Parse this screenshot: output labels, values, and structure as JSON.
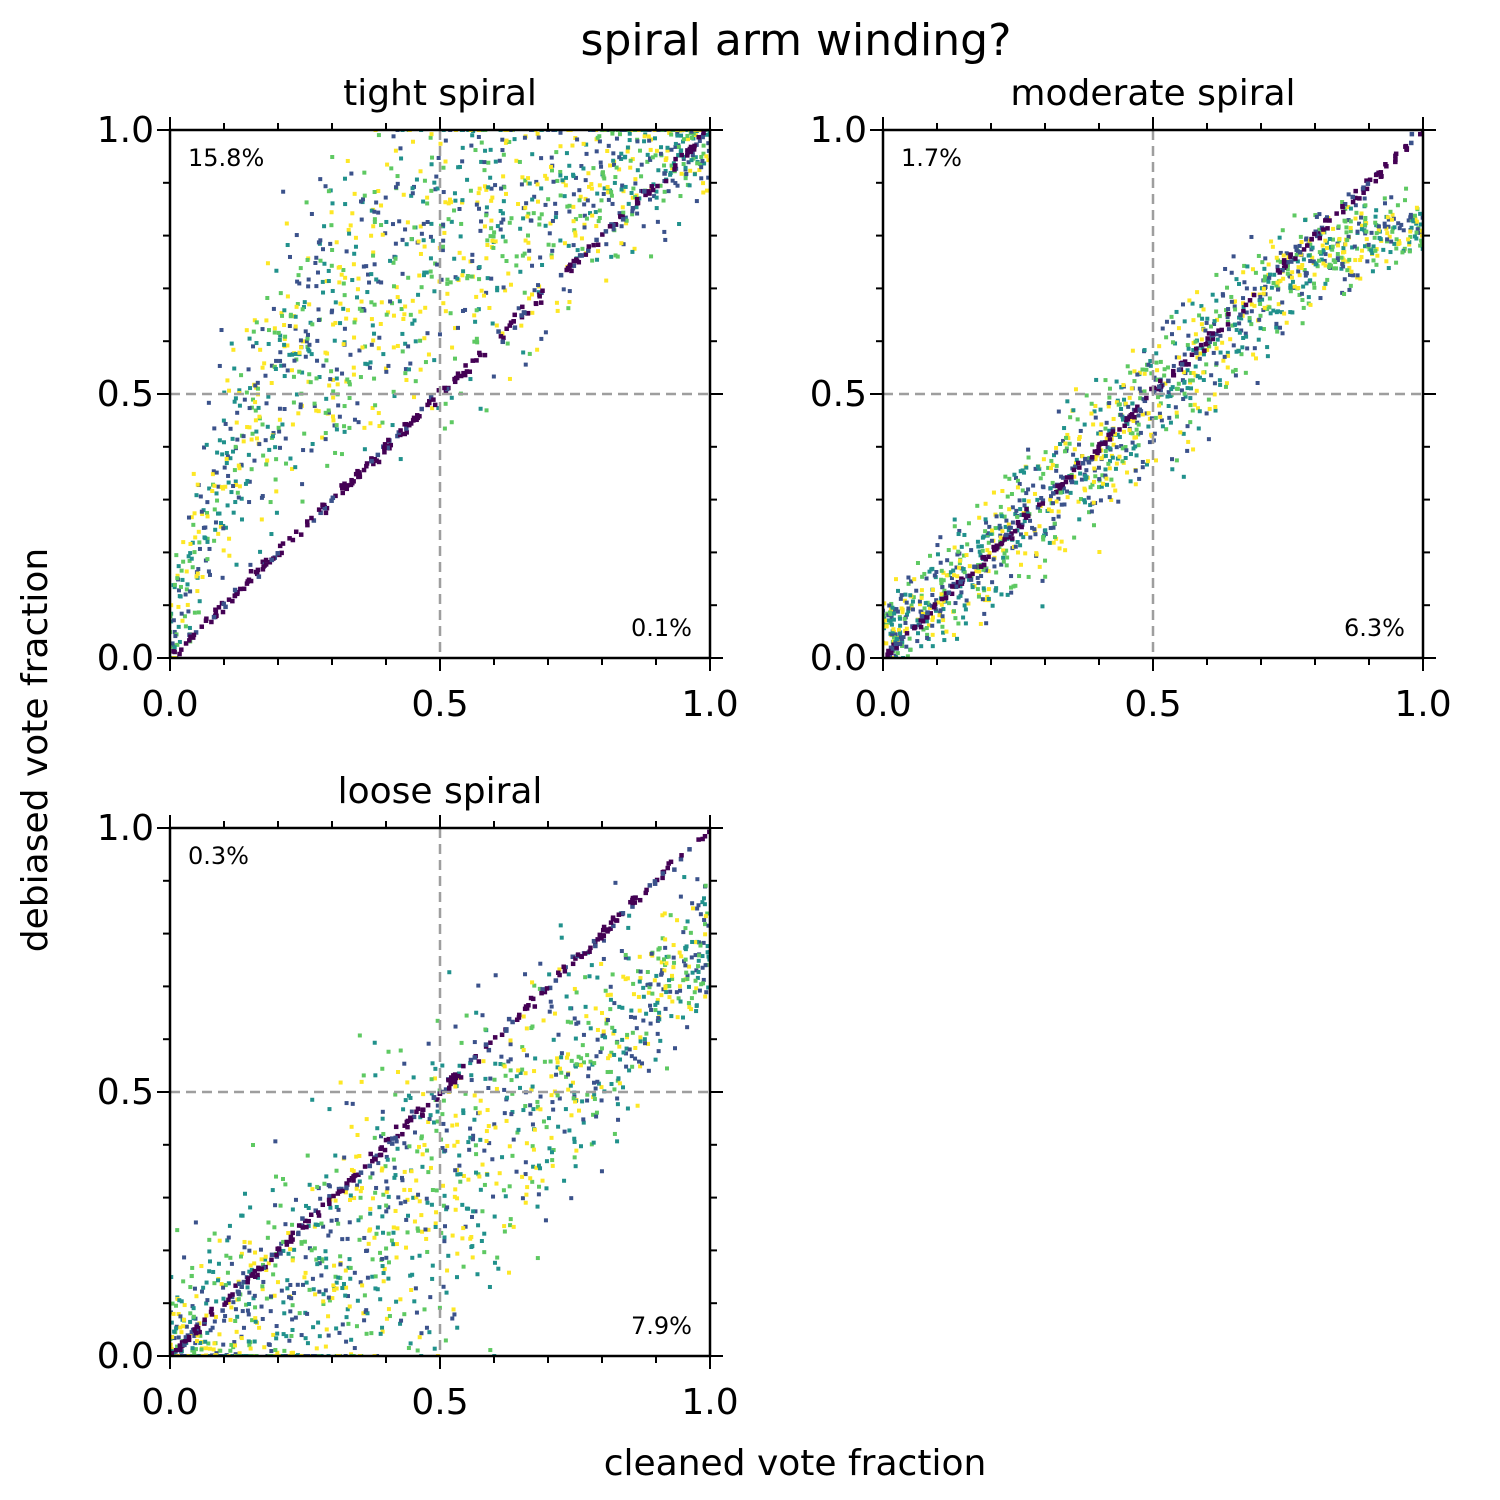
{
  "figure": {
    "suptitle": "spiral arm winding?",
    "xlabel": "cleaned vote fraction",
    "ylabel": "debiased vote fraction"
  },
  "style": {
    "guide_color": "#9e9e9e",
    "colormap": [
      "#440154",
      "#3b528b",
      "#21918c",
      "#5ec962",
      "#fde725"
    ]
  },
  "chart_data": [
    {
      "type": "scatter",
      "title": "tight spiral",
      "xlim": [
        0,
        1
      ],
      "ylim": [
        0,
        1
      ],
      "xticks": [
        "0.0",
        "0.5",
        "1.0"
      ],
      "yticks": [
        "0.0",
        "0.5",
        "1.0"
      ],
      "reference_lines": {
        "x": 0.5,
        "y": 0.5,
        "style": "dashed"
      },
      "annotations": {
        "upper_left": "15.8%",
        "lower_right": "0.1%"
      },
      "trend": {
        "diagonal": "y = x",
        "cloud_bias": "above diagonal",
        "spread": 0.15,
        "shift": 0.18
      },
      "series": [
        {
          "points": [
            [
              0.0,
              0.02
            ],
            [
              0.05,
              0.22
            ],
            [
              0.1,
              0.35
            ],
            [
              0.15,
              0.45
            ],
            [
              0.2,
              0.52
            ],
            [
              0.25,
              0.58
            ],
            [
              0.3,
              0.63
            ],
            [
              0.35,
              0.67
            ],
            [
              0.4,
              0.71
            ],
            [
              0.5,
              0.77
            ],
            [
              0.6,
              0.82
            ],
            [
              0.7,
              0.87
            ],
            [
              0.8,
              0.91
            ],
            [
              0.9,
              0.95
            ],
            [
              1.0,
              0.98
            ]
          ]
        }
      ]
    },
    {
      "type": "scatter",
      "title": "moderate spiral",
      "xlim": [
        0,
        1
      ],
      "ylim": [
        0,
        1
      ],
      "xticks": [
        "0.0",
        "0.5",
        "1.0"
      ],
      "yticks": [
        "0.0",
        "0.5",
        "1.0"
      ],
      "reference_lines": {
        "x": 0.5,
        "y": 0.5,
        "style": "dashed"
      },
      "annotations": {
        "upper_left": "1.7%",
        "lower_right": "6.3%"
      },
      "trend": {
        "diagonal": "y = x",
        "cloud_bias": "along diagonal, plateau near 0.8",
        "spread": 0.07,
        "shift": 0.0
      },
      "series": [
        {
          "points": [
            [
              0.0,
              0.05
            ],
            [
              0.1,
              0.12
            ],
            [
              0.2,
              0.2
            ],
            [
              0.3,
              0.3
            ],
            [
              0.4,
              0.39
            ],
            [
              0.5,
              0.48
            ],
            [
              0.6,
              0.58
            ],
            [
              0.7,
              0.68
            ],
            [
              0.8,
              0.76
            ],
            [
              0.9,
              0.8
            ],
            [
              1.0,
              0.82
            ]
          ]
        }
      ]
    },
    {
      "type": "scatter",
      "title": "loose spiral",
      "xlim": [
        0,
        1
      ],
      "ylim": [
        0,
        1
      ],
      "xticks": [
        "0.0",
        "0.5",
        "1.0"
      ],
      "yticks": [
        "0.0",
        "0.5",
        "1.0"
      ],
      "reference_lines": {
        "x": 0.5,
        "y": 0.5,
        "style": "dashed"
      },
      "annotations": {
        "upper_left": "0.3%",
        "lower_right": "7.9%"
      },
      "trend": {
        "diagonal": "y = x",
        "cloud_bias": "below diagonal",
        "spread": 0.15,
        "shift": -0.2
      },
      "series": [
        {
          "points": [
            [
              0.0,
              0.0
            ],
            [
              0.1,
              0.05
            ],
            [
              0.2,
              0.1
            ],
            [
              0.3,
              0.17
            ],
            [
              0.4,
              0.24
            ],
            [
              0.5,
              0.32
            ],
            [
              0.6,
              0.41
            ],
            [
              0.7,
              0.51
            ],
            [
              0.8,
              0.6
            ],
            [
              0.9,
              0.7
            ],
            [
              1.0,
              0.78
            ]
          ]
        }
      ]
    }
  ]
}
